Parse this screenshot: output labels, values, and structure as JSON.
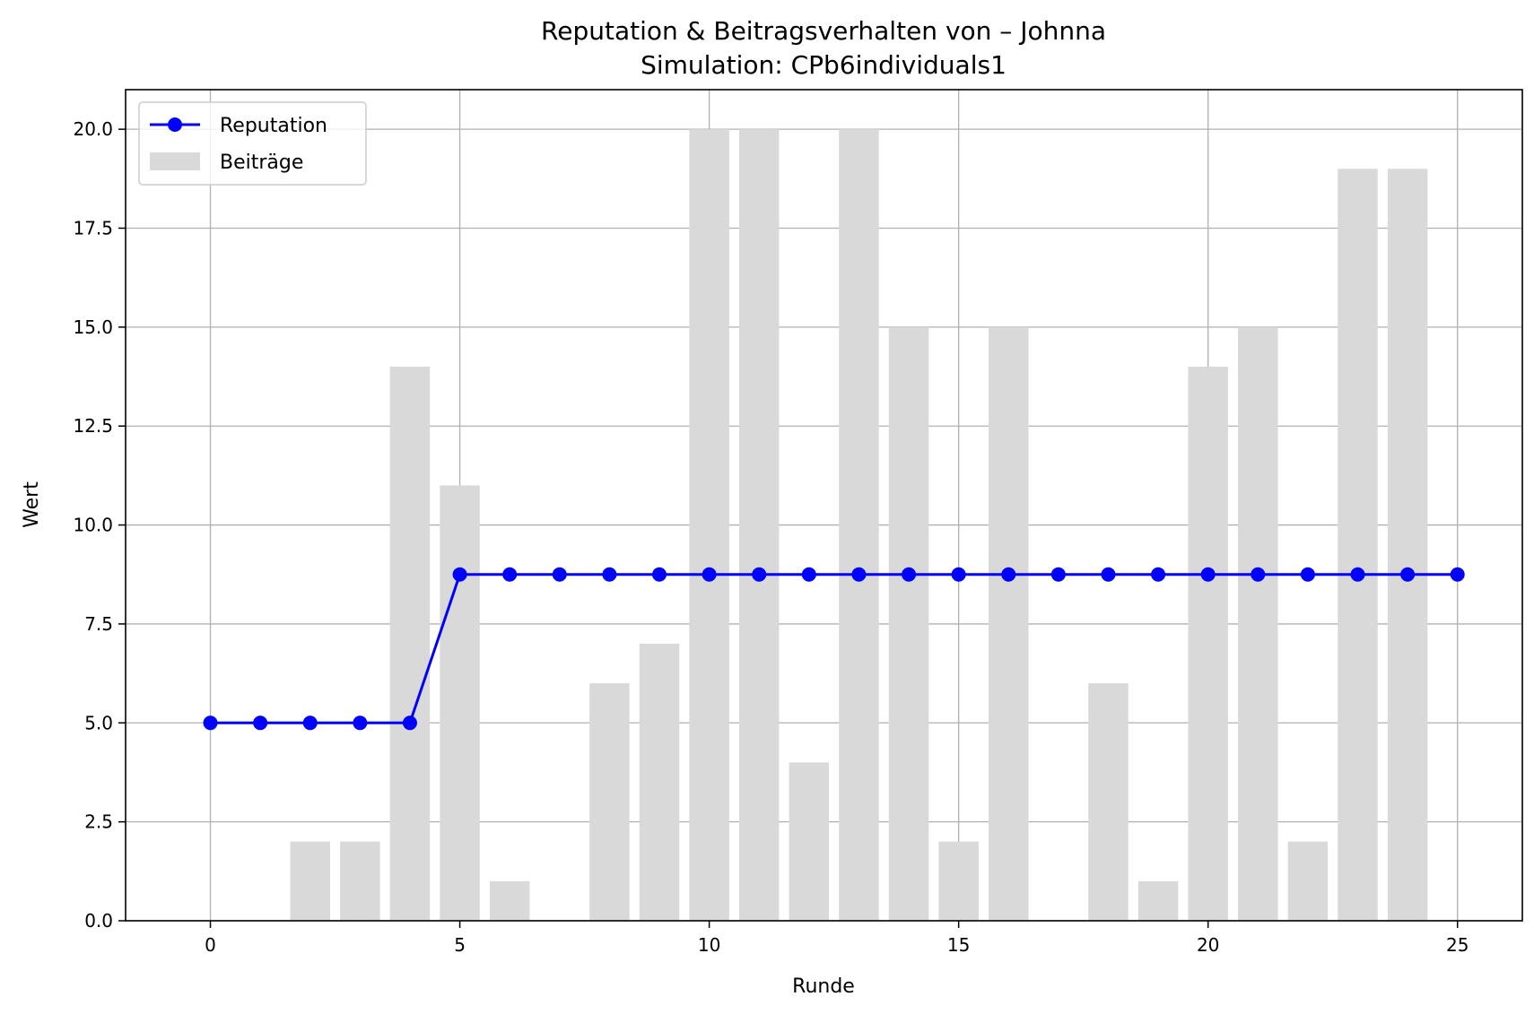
{
  "chart_data": {
    "type": "bar+line",
    "title": "Reputation & Beitragsverhalten von – Johnna",
    "subtitle": "Simulation: CPb6individuals1",
    "xlabel": "Runde",
    "ylabel": "Wert",
    "xlim": [
      -1.7,
      26.3
    ],
    "ylim": [
      0,
      21
    ],
    "xticks": [
      0,
      5,
      10,
      15,
      20,
      25
    ],
    "yticks": [
      0.0,
      2.5,
      5.0,
      7.5,
      10.0,
      12.5,
      15.0,
      17.5,
      20.0
    ],
    "x_tick_labels": [
      "0",
      "5",
      "10",
      "15",
      "20",
      "25"
    ],
    "y_tick_labels": [
      "0.0",
      "2.5",
      "5.0",
      "7.5",
      "10.0",
      "12.5",
      "15.0",
      "17.5",
      "20.0"
    ],
    "grid": true,
    "legend_position": "upper-left",
    "series": [
      {
        "name": "Reputation",
        "kind": "line",
        "color": "#0000ff",
        "marker": "circle",
        "x": [
          0,
          1,
          2,
          3,
          4,
          5,
          6,
          7,
          8,
          9,
          10,
          11,
          12,
          13,
          14,
          15,
          16,
          17,
          18,
          19,
          20,
          21,
          22,
          23,
          24,
          25
        ],
        "values": [
          5,
          5,
          5,
          5,
          5,
          8.75,
          8.75,
          8.75,
          8.75,
          8.75,
          8.75,
          8.75,
          8.75,
          8.75,
          8.75,
          8.75,
          8.75,
          8.75,
          8.75,
          8.75,
          8.75,
          8.75,
          8.75,
          8.75,
          8.75,
          8.75
        ]
      },
      {
        "name": "Beiträge",
        "kind": "bar",
        "color": "#d9d9d9",
        "x": [
          0,
          1,
          2,
          3,
          4,
          5,
          6,
          7,
          8,
          9,
          10,
          11,
          12,
          13,
          14,
          15,
          16,
          17,
          18,
          19,
          20,
          21,
          22,
          23,
          24
        ],
        "values": [
          0,
          0,
          2,
          2,
          14,
          11,
          1,
          0,
          6,
          7,
          20,
          20,
          4,
          20,
          15,
          2,
          15,
          0,
          6,
          1,
          14,
          15,
          2,
          19,
          19
        ]
      }
    ]
  }
}
